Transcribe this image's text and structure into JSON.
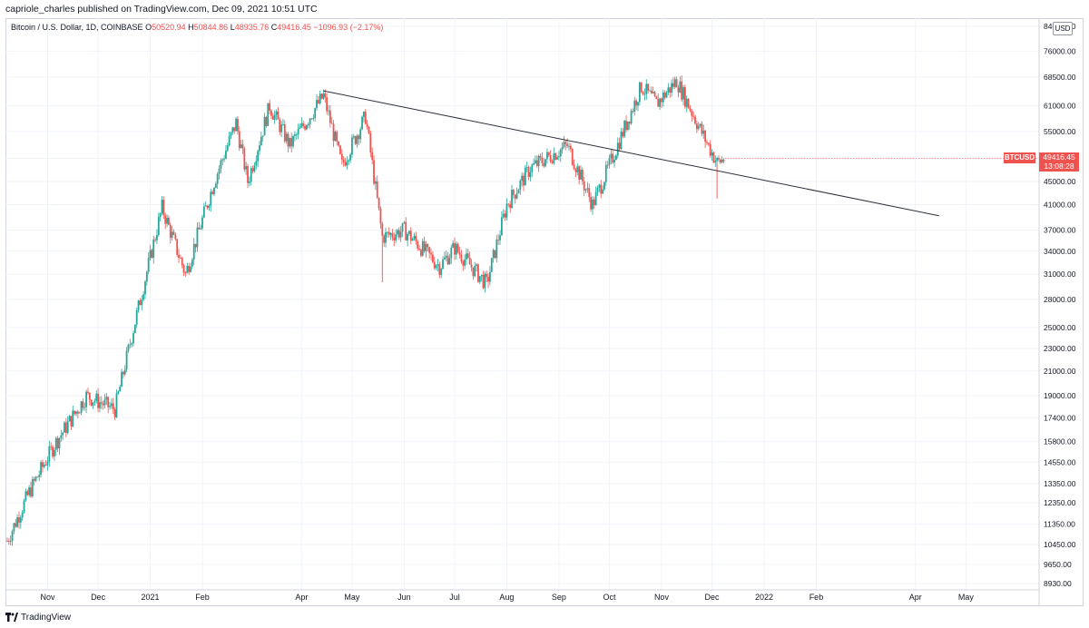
{
  "header": {
    "publisher_line": "capriole_charles published on TradingView.com, Dec 09, 2021 10:51 UTC"
  },
  "legend": {
    "symbol": "Bitcoin / U.S. Dollar, 1D, COINBASE",
    "open_label": "O",
    "open": "50520.94",
    "high_label": "H",
    "high": "50844.86",
    "low_label": "L",
    "low": "48935.76",
    "close_label": "C",
    "close": "49416.45",
    "change": "−1096.93 (−2.17%)"
  },
  "price_scale": {
    "currency_button": "USD",
    "ticker_badge": "BTCUSD",
    "last_price": "49416.45",
    "countdown": "13:08:28"
  },
  "footer": {
    "brand": "TradingView"
  },
  "colors": {
    "up": "#26a69a",
    "down": "#ef5350",
    "trendline": "#2a2e39",
    "grid": "#f0f3fa"
  },
  "chart_data": {
    "type": "candlestick",
    "y_scale": "log",
    "ylim": [
      8930,
      84000
    ],
    "x_range": [
      "2020-10-08",
      "2022-05-31"
    ],
    "y_ticks": [
      "84000.00",
      "76000.00",
      "68500.00",
      "61000.00",
      "55000.00",
      "49416.45",
      "45000.00",
      "41000.00",
      "37000.00",
      "34000.00",
      "31000.00",
      "28000.00",
      "25000.00",
      "23000.00",
      "21000.00",
      "19000.00",
      "17400.00",
      "15800.00",
      "14550.00",
      "13350.00",
      "12350.00",
      "11350.00",
      "10450.00",
      "9650.00",
      "8930.00"
    ],
    "x_ticks": [
      {
        "label": "Nov",
        "date": "2020-11-01"
      },
      {
        "label": "Dec",
        "date": "2020-12-01"
      },
      {
        "label": "2021",
        "date": "2021-01-01"
      },
      {
        "label": "Feb",
        "date": "2021-02-01"
      },
      {
        "label": "Apr",
        "date": "2021-04-01"
      },
      {
        "label": "May",
        "date": "2021-05-01"
      },
      {
        "label": "Jun",
        "date": "2021-06-01"
      },
      {
        "label": "Jul",
        "date": "2021-07-01"
      },
      {
        "label": "Aug",
        "date": "2021-08-01"
      },
      {
        "label": "Sep",
        "date": "2021-09-01"
      },
      {
        "label": "Oct",
        "date": "2021-10-01"
      },
      {
        "label": "Nov",
        "date": "2021-11-01"
      },
      {
        "label": "Dec",
        "date": "2021-12-01"
      },
      {
        "label": "2022",
        "date": "2022-01-01"
      },
      {
        "label": "Feb",
        "date": "2022-02-01"
      },
      {
        "label": "Apr",
        "date": "2022-04-01"
      },
      {
        "label": "May",
        "date": "2022-05-01"
      }
    ],
    "price_path": [
      [
        "2020-10-08",
        10600
      ],
      [
        "2020-10-21",
        12900
      ],
      [
        "2020-11-05",
        15600
      ],
      [
        "2020-11-24",
        19000
      ],
      [
        "2020-12-11",
        18000
      ],
      [
        "2020-12-20",
        23500
      ],
      [
        "2021-01-08",
        40500
      ],
      [
        "2021-01-22",
        31000
      ],
      [
        "2021-02-08",
        45000
      ],
      [
        "2021-02-21",
        57000
      ],
      [
        "2021-02-28",
        45000
      ],
      [
        "2021-03-13",
        61000
      ],
      [
        "2021-03-25",
        52000
      ],
      [
        "2021-04-14",
        63500
      ],
      [
        "2021-04-25",
        48000
      ],
      [
        "2021-05-09",
        58500
      ],
      [
        "2021-05-19",
        36000
      ],
      [
        "2021-06-01",
        37000
      ],
      [
        "2021-06-22",
        32000
      ],
      [
        "2021-07-01",
        34500
      ],
      [
        "2021-07-20",
        29800
      ],
      [
        "2021-08-01",
        41000
      ],
      [
        "2021-08-15",
        47500
      ],
      [
        "2021-09-06",
        52000
      ],
      [
        "2021-09-21",
        41000
      ],
      [
        "2021-10-01",
        48000
      ],
      [
        "2021-10-20",
        66000
      ],
      [
        "2021-10-29",
        61500
      ],
      [
        "2021-11-10",
        67500
      ],
      [
        "2021-11-26",
        54000
      ],
      [
        "2021-12-04",
        48500
      ],
      [
        "2021-12-09",
        49416
      ]
    ],
    "wicks": [
      {
        "date": "2021-05-19",
        "low": 30000
      },
      {
        "date": "2021-12-04",
        "low": 42000
      }
    ],
    "trendline": {
      "start": [
        "2021-04-14",
        64800
      ],
      "end": [
        "2022-04-15",
        39200
      ]
    },
    "last_price": 49416.45
  }
}
